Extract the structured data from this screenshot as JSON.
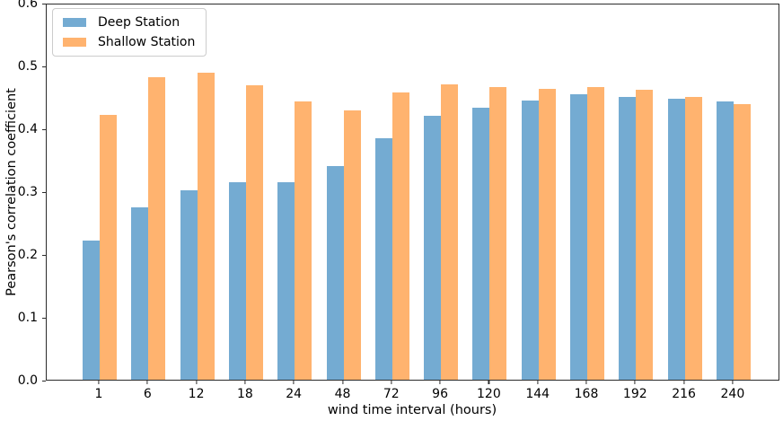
{
  "chart_data": {
    "type": "bar",
    "title": "",
    "xlabel": "wind time interval (hours)",
    "ylabel": "Pearson's correlation coefficient",
    "categories": [
      "1",
      "6",
      "12",
      "18",
      "24",
      "48",
      "72",
      "96",
      "120",
      "144",
      "168",
      "192",
      "216",
      "240"
    ],
    "series": [
      {
        "name": "Deep Station",
        "color": "#74abd2",
        "values": [
          0.221,
          0.275,
          0.301,
          0.314,
          0.315,
          0.34,
          0.384,
          0.42,
          0.433,
          0.445,
          0.454,
          0.45,
          0.447,
          0.443
        ]
      },
      {
        "name": "Shallow Station",
        "color": "#ffb36f",
        "values": [
          0.421,
          0.482,
          0.489,
          0.468,
          0.443,
          0.429,
          0.457,
          0.47,
          0.466,
          0.463,
          0.466,
          0.462,
          0.45,
          0.438
        ]
      }
    ],
    "ylim": [
      0.0,
      0.6
    ],
    "yticks": [
      "0.0",
      "0.1",
      "0.2",
      "0.3",
      "0.4",
      "0.5",
      "0.6"
    ],
    "grid": false,
    "legend_position": "upper-left"
  }
}
